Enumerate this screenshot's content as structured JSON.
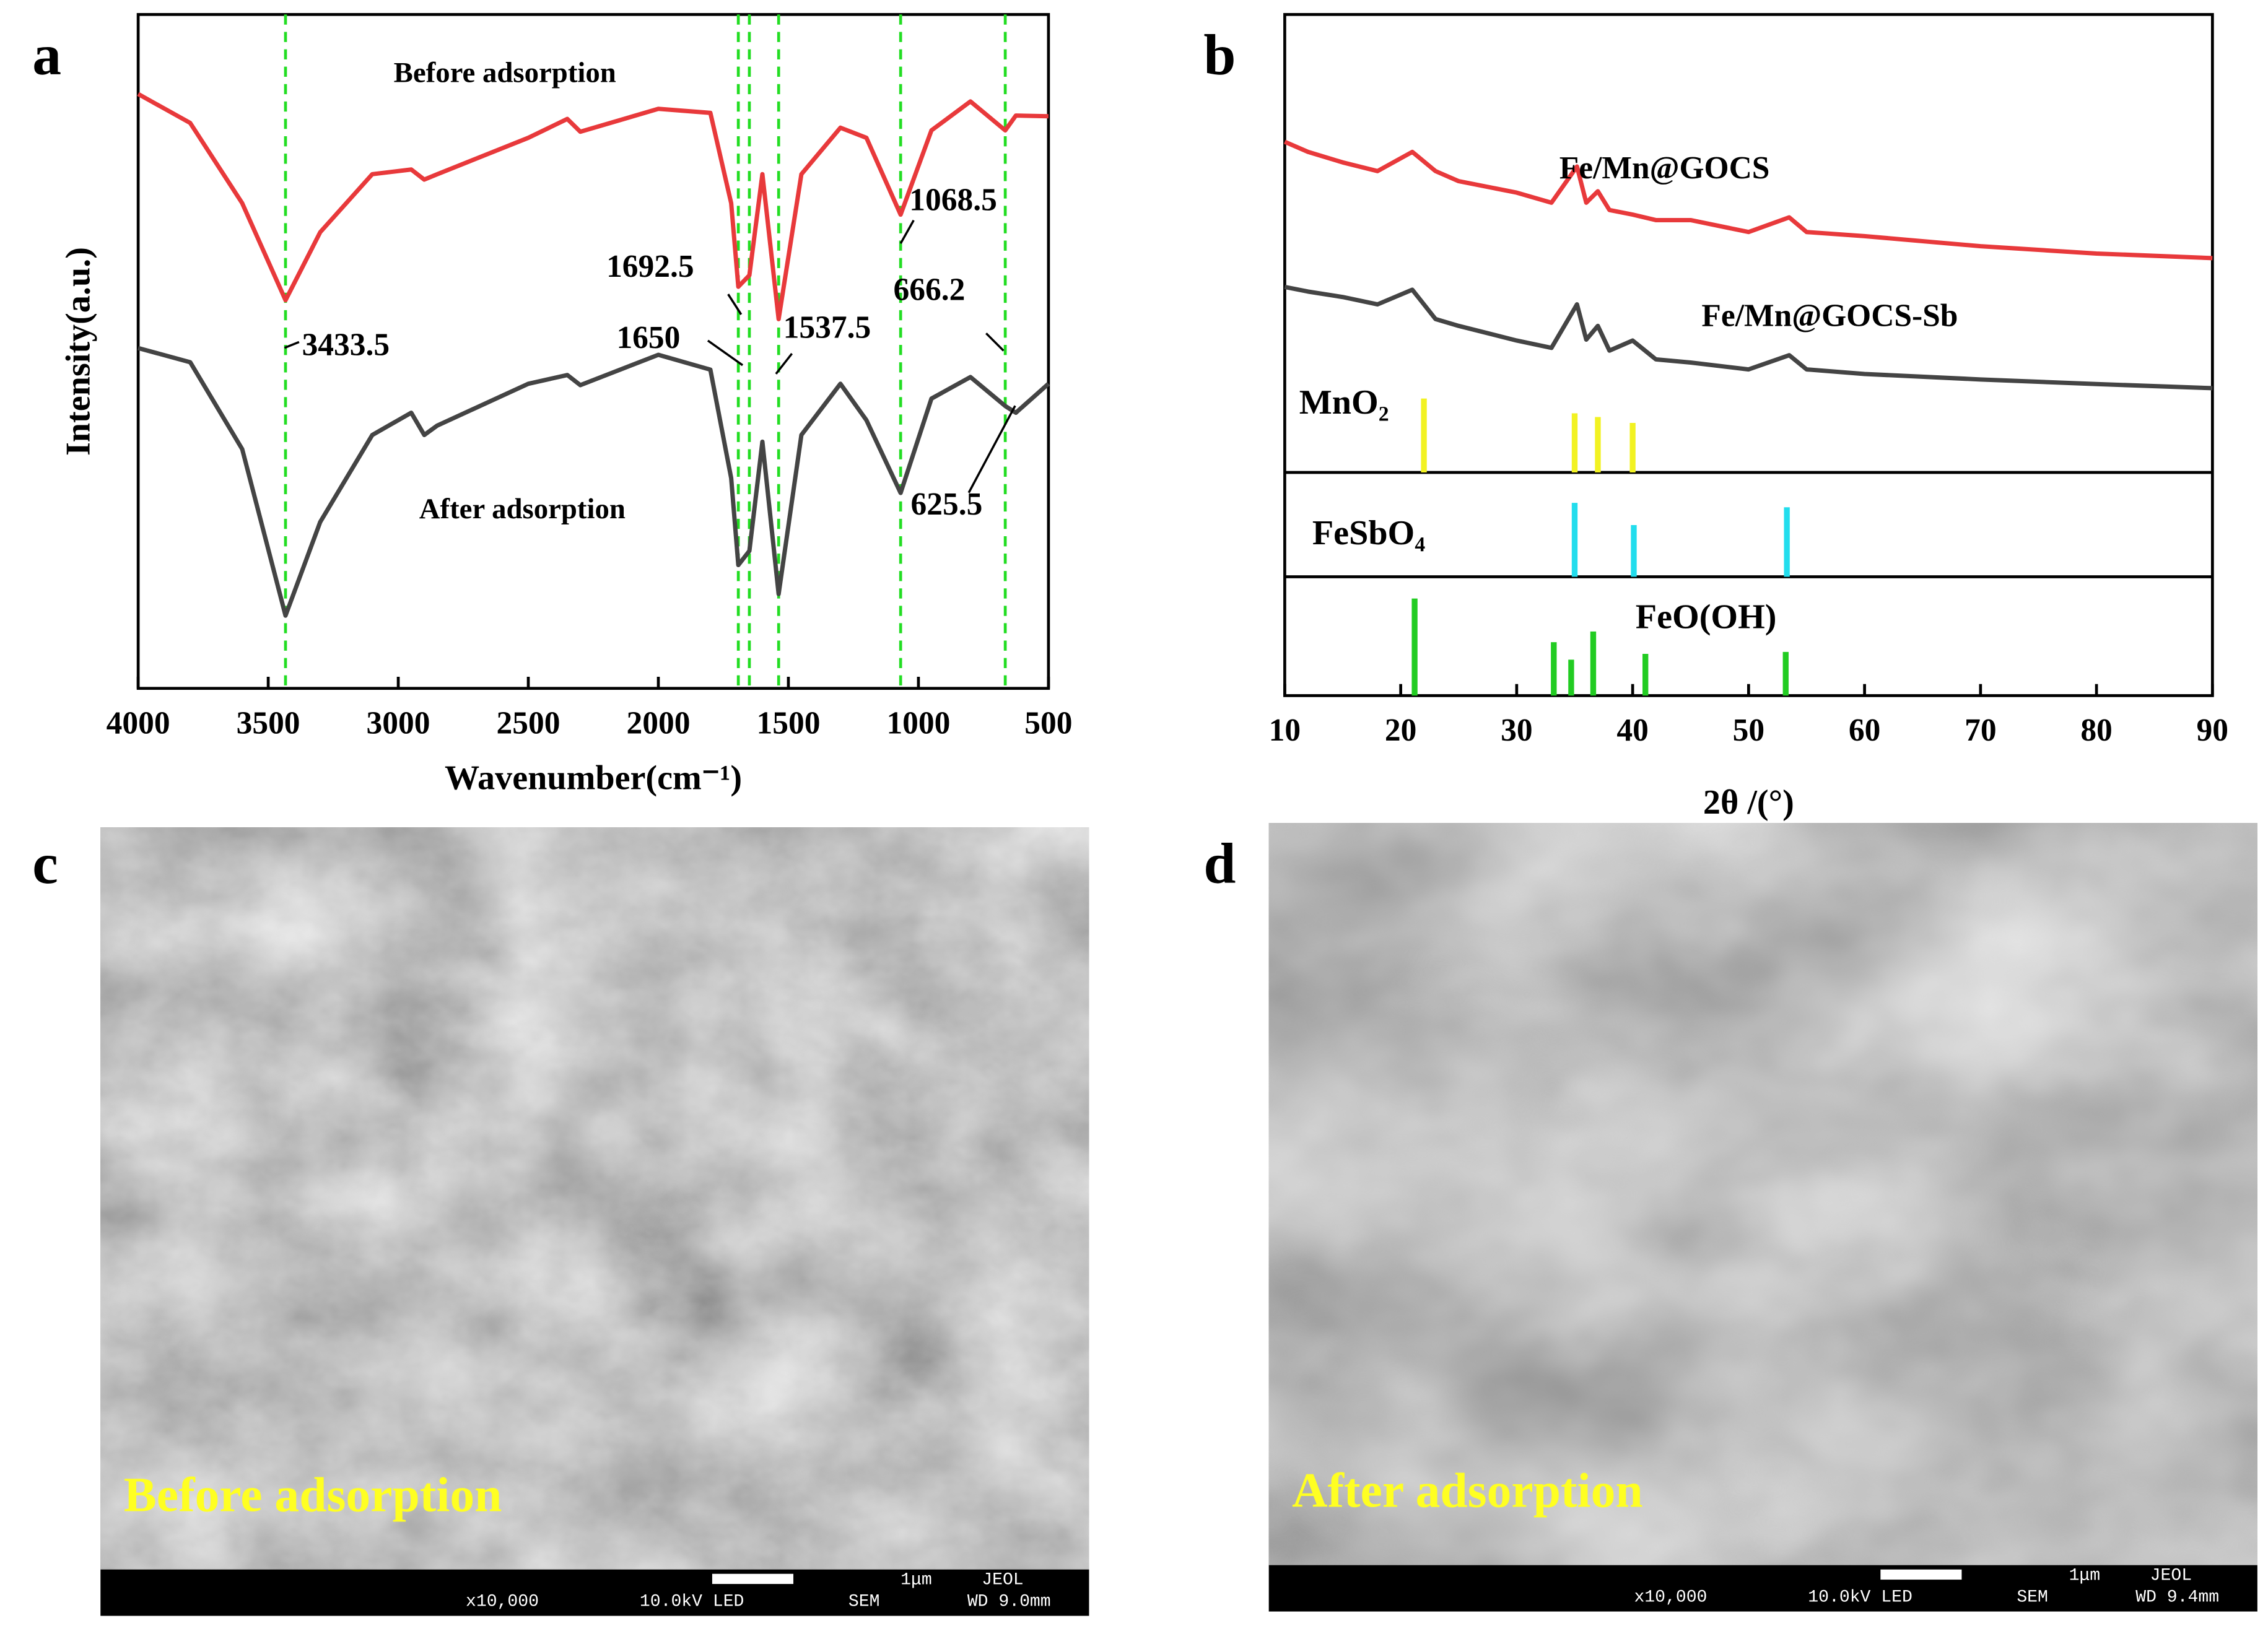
{
  "panel_labels": [
    "a",
    "b",
    "c",
    "d"
  ],
  "chart_data": [
    {
      "type": "line",
      "x_label": "Wavenumber(cm⁻¹)",
      "y_label": "Intensity(a.u.)",
      "xlim": [
        4000,
        500
      ],
      "xticks": [
        4000,
        3500,
        3000,
        2500,
        2000,
        1500,
        1000,
        500
      ],
      "ylim": [
        0,
        100
      ],
      "x": [
        4000,
        3800,
        3600,
        3433.5,
        3300,
        3100,
        2950,
        2900,
        2850,
        2500,
        2350,
        2300,
        2000,
        1800,
        1720,
        1692.5,
        1650,
        1600,
        1537.5,
        1450,
        1300,
        1200,
        1068.5,
        950,
        800,
        666.2,
        625.5,
        500
      ],
      "series": [
        {
          "name": "Before adsorption",
          "color": "#e8393b",
          "values": [
            88.2,
            83.9,
            72,
            57.6,
            67.7,
            76.3,
            77,
            75.5,
            76.3,
            81.7,
            84.5,
            82.6,
            86,
            85.4,
            72,
            59.6,
            61.3,
            76.3,
            54.8,
            76.3,
            83.2,
            81.7,
            70.3,
            82.8,
            87.1,
            82.8,
            85,
            84.9
          ]
        },
        {
          "name": "After adsorption",
          "color": "#444444",
          "values": [
            50.5,
            48.4,
            35.5,
            10.8,
            24.7,
            37.6,
            40.9,
            37.6,
            39,
            45.2,
            46.5,
            45,
            49.5,
            47.3,
            31.2,
            18.3,
            20.4,
            36.6,
            14,
            37.6,
            45.2,
            39.8,
            29,
            43,
            46.2,
            41.9,
            40.9,
            45.2
          ]
        }
      ],
      "reference_lines": [
        3433.5,
        1692.5,
        1650,
        1537.5,
        1068.5,
        666.2
      ],
      "reference_line_color": "#22dd22",
      "annotations": [
        "3433.5",
        "1692.5",
        "1650",
        "1537.5",
        "1068.5",
        "666.2",
        "625.5"
      ]
    },
    {
      "type": "line",
      "x_label": "2θ /(°)",
      "xlim": [
        10,
        90
      ],
      "xticks": [
        10,
        20,
        30,
        40,
        50,
        60,
        70,
        80,
        90
      ],
      "ylim": [
        0,
        100
      ],
      "x": [
        10,
        12,
        15,
        18,
        21,
        23,
        25,
        30,
        33,
        35.2,
        36,
        37,
        38,
        40,
        42,
        45,
        50,
        53.5,
        55,
        60,
        70,
        80,
        90
      ],
      "series": [
        {
          "name": "Fe/Mn@GOCS",
          "color": "#e8393b",
          "values": [
            72.2,
            70,
            67.7,
            65.8,
            70,
            65.8,
            63.6,
            61.1,
            58.9,
            66.8,
            58.9,
            61.4,
            57.3,
            56.3,
            55.1,
            55.1,
            52.5,
            55.7,
            52.5,
            51.6,
            49.4,
            47.8,
            46.8
          ]
        },
        {
          "name": "Fe/Mn@GOCS-Sb",
          "color": "#444444",
          "values": [
            40.5,
            39.5,
            38.3,
            36.7,
            39.9,
            33.5,
            32,
            28.8,
            27.2,
            36.7,
            29,
            32,
            26.6,
            28.8,
            24.7,
            24,
            22.5,
            25.6,
            22.5,
            21.5,
            20.3,
            19.3,
            18.4
          ]
        }
      ],
      "reference_patterns": [
        {
          "name": "MnO₂",
          "color": "#f2f222",
          "positions": [
            22,
            35,
            37,
            40
          ],
          "intensities": [
            100,
            80,
            75,
            67
          ]
        },
        {
          "name": "FeSbO₄",
          "color": "#22dded",
          "positions": [
            35,
            40.1,
            53.3
          ],
          "intensities": [
            100,
            70,
            94
          ]
        },
        {
          "name": "FeO(OH)",
          "color": "#22cc22",
          "positions": [
            21.2,
            33.2,
            34.7,
            36.6,
            41.1,
            53.2
          ],
          "intensities": [
            100,
            55,
            37,
            66,
            43,
            45
          ]
        }
      ]
    }
  ],
  "images": [
    {
      "caption": "Before adsorption",
      "scale": "1μm",
      "brand": "JEOL",
      "magnification": "x10,000",
      "voltage": "10.0kV LED",
      "mode": "SEM",
      "working_distance": "WD 9.0mm"
    },
    {
      "caption": "After adsorption",
      "scale": "1μm",
      "brand": "JEOL",
      "magnification": "x10,000",
      "voltage": "10.0kV LED",
      "mode": "SEM",
      "working_distance": "WD 9.4mm"
    }
  ]
}
